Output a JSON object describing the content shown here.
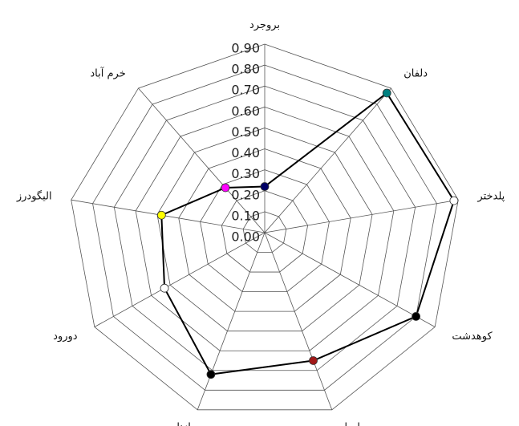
{
  "chart_data": {
    "type": "radar",
    "categories": [
      "بروجرد",
      "دلفان",
      "پلدختر",
      "کوهدشت",
      "سلسله",
      "ازنا",
      "دورود",
      "الیگودرز",
      "خرم آباد"
    ],
    "series": [
      {
        "color": "#000000",
        "values": [
          0.22,
          0.87,
          0.88,
          0.8,
          0.65,
          0.72,
          0.53,
          0.48,
          0.28
        ],
        "marker_colors": [
          "#000066",
          "#008080",
          "#ffffff",
          "#000000",
          "#a01818",
          "#000000",
          "#ffffff",
          "#ffff00",
          "#ff00ff"
        ]
      }
    ],
    "ylim": [
      0,
      0.9
    ],
    "yticks": [
      {
        "value": 0,
        "label": "0.00"
      },
      {
        "value": 0.1,
        "label": "0.10"
      },
      {
        "value": 0.2,
        "label": "0.20"
      },
      {
        "value": 0.3,
        "label": "0.30"
      },
      {
        "value": 0.4,
        "label": "0.40"
      },
      {
        "value": 0.5,
        "label": "0.50"
      },
      {
        "value": 0.6,
        "label": "0.60"
      },
      {
        "value": 0.7,
        "label": "0.70"
      },
      {
        "value": 0.8,
        "label": "0.80"
      },
      {
        "value": 0.9,
        "label": "0.90"
      }
    ],
    "grid": true
  }
}
